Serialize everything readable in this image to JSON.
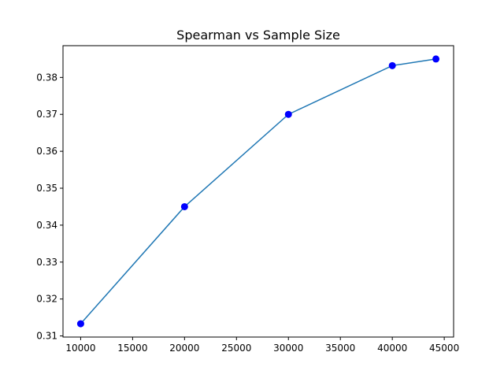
{
  "chart_data": {
    "type": "line",
    "title": "Spearman vs Sample Size",
    "xlabel": "",
    "ylabel": "",
    "xlim": [
      8300,
      45900
    ],
    "ylim": [
      0.3097,
      0.3886
    ],
    "x_ticks": [
      10000,
      15000,
      20000,
      25000,
      30000,
      35000,
      40000,
      45000
    ],
    "y_ticks": [
      0.31,
      0.32,
      0.33,
      0.34,
      0.35,
      0.36,
      0.37,
      0.38
    ],
    "x_tick_labels": [
      "10000",
      "15000",
      "20000",
      "25000",
      "30000",
      "35000",
      "40000",
      "45000"
    ],
    "y_tick_labels": [
      "0.31",
      "0.32",
      "0.33",
      "0.34",
      "0.35",
      "0.36",
      "0.37",
      "0.38"
    ],
    "grid": false,
    "legend": "none",
    "series": [
      {
        "x": [
          10000,
          20000,
          30000,
          40000,
          44200
        ],
        "y": [
          0.3133,
          0.345,
          0.37,
          0.3832,
          0.385
        ],
        "line_color": "#1f77b4",
        "marker_color": "#0000ff"
      }
    ]
  }
}
